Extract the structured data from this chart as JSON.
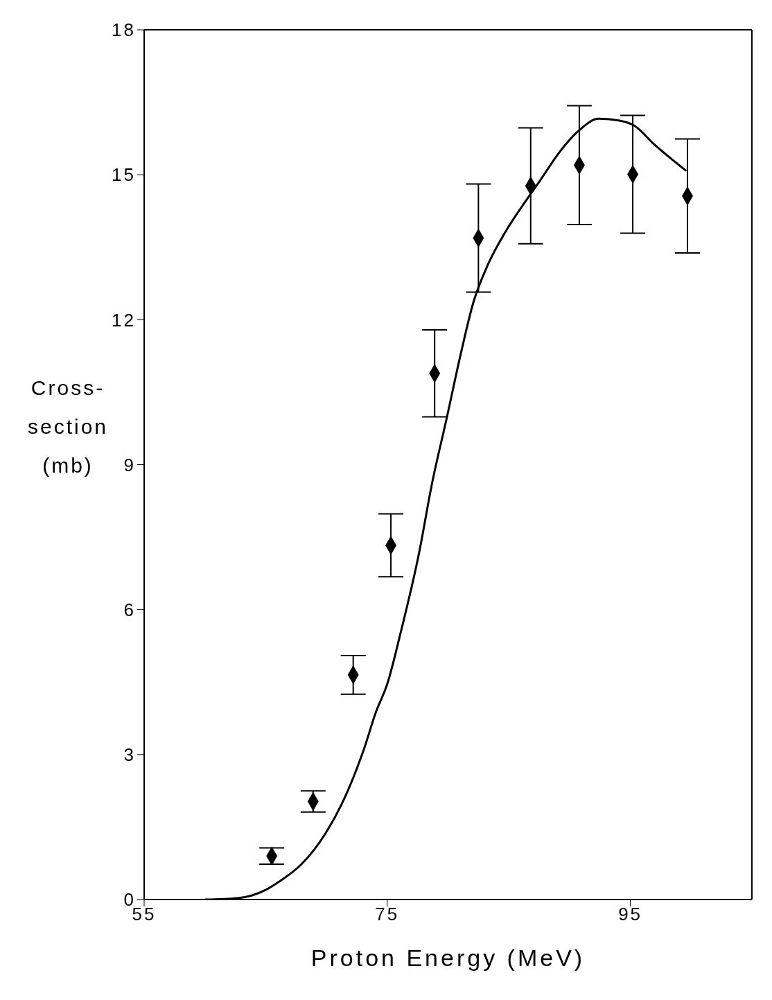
{
  "chart_data": {
    "type": "scatter",
    "xlabel": "Proton Energy (MeV)",
    "ylabel": "Cross-section (mb)",
    "xlim": [
      55,
      105
    ],
    "xticks": [
      55,
      75,
      95
    ],
    "ylim": [
      0,
      18
    ],
    "yticks": [
      0,
      3,
      6,
      9,
      12,
      15,
      18
    ],
    "grid": false,
    "legend": false,
    "marker": "diamond",
    "series": [
      {
        "color": "#000000",
        "x": [
          65.5,
          68.9,
          72.2,
          75.3,
          78.9,
          82.5,
          86.8,
          90.8,
          95.2,
          99.7
        ],
        "values": [
          0.9,
          2.03,
          4.65,
          7.33,
          10.89,
          13.69,
          14.77,
          15.2,
          15.01,
          14.56
        ],
        "errors": [
          0.17,
          0.22,
          0.4,
          0.65,
          0.9,
          1.12,
          1.2,
          1.23,
          1.22,
          1.18
        ]
      },
      {
        "type": "line",
        "color": "#000000",
        "marker": "none",
        "x": [
          60,
          62.7,
          65,
          66.1,
          67.9,
          69.9,
          71.3,
          73,
          74.1,
          75,
          76.1,
          77.6,
          78.7,
          79.9,
          81,
          82.1,
          83.3,
          84.7,
          86.1,
          87.6,
          89,
          90.7,
          92.4,
          94.1,
          95.3,
          97,
          99.6
        ],
        "values": [
          0,
          0.03,
          0.2,
          0.37,
          0.72,
          1.36,
          2.0,
          3.05,
          3.9,
          4.46,
          5.52,
          7.15,
          8.63,
          9.97,
          11.24,
          12.37,
          13.15,
          13.81,
          14.35,
          14.89,
          15.41,
          15.9,
          16.16,
          16.12,
          16.02,
          15.62,
          15.08
        ]
      }
    ]
  }
}
